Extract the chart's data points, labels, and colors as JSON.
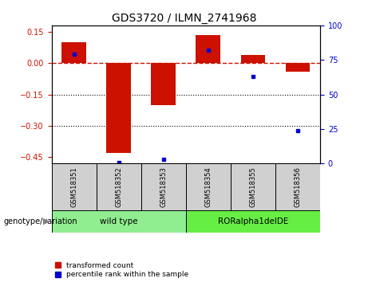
{
  "title": "GDS3720 / ILMN_2741968",
  "samples": [
    "GSM518351",
    "GSM518352",
    "GSM518353",
    "GSM518354",
    "GSM518355",
    "GSM518356"
  ],
  "transformed_counts": [
    0.1,
    -0.43,
    -0.2,
    0.135,
    0.04,
    -0.04
  ],
  "percentile_ranks": [
    79,
    1,
    3,
    82,
    63,
    24
  ],
  "groups": [
    {
      "name": "wild type",
      "samples": [
        0,
        1,
        2
      ],
      "color": "#90EE90"
    },
    {
      "name": "RORalpha1delDE",
      "samples": [
        3,
        4,
        5
      ],
      "color": "#66EE44"
    }
  ],
  "ylim_left": [
    -0.48,
    0.18
  ],
  "ylim_right": [
    0,
    100
  ],
  "yticks_left": [
    0.15,
    0,
    -0.15,
    -0.3,
    -0.45
  ],
  "yticks_right": [
    100,
    75,
    50,
    25,
    0
  ],
  "bar_color": "#CC1100",
  "dot_color": "#0000CC",
  "hline_y": 0,
  "dotted_lines": [
    -0.15,
    -0.3
  ],
  "bar_width": 0.55,
  "group_label": "genotype/variation",
  "legend_items": [
    "transformed count",
    "percentile rank within the sample"
  ],
  "background_color": "#ffffff",
  "plot_bg": "#ffffff",
  "tick_label_color_left": "#CC1100",
  "tick_label_color_right": "#0000CC"
}
